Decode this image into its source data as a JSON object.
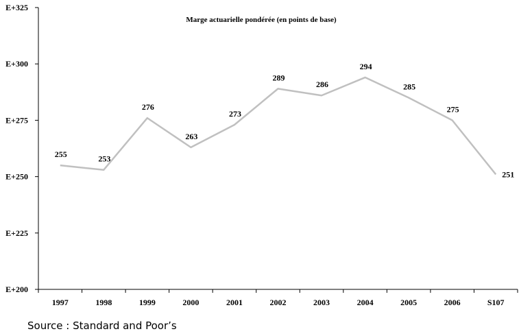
{
  "chart_data": {
    "type": "line",
    "title": "Marge actuarielle pondérée (en points de base)",
    "categories": [
      "1997",
      "1998",
      "1999",
      "2000",
      "2001",
      "2002",
      "2003",
      "2004",
      "2005",
      "2006",
      "S107"
    ],
    "values": [
      255,
      253,
      276,
      263,
      273,
      289,
      286,
      294,
      285,
      275,
      251
    ],
    "y_ticks": [
      "E+200",
      "E+225",
      "E+250",
      "E+275",
      "E+300",
      "E+325"
    ],
    "ylim": [
      200,
      325
    ],
    "line_color": "#c0c0c0",
    "grid": false,
    "legend": "none"
  },
  "source": "Source : Standard and Poor’s"
}
